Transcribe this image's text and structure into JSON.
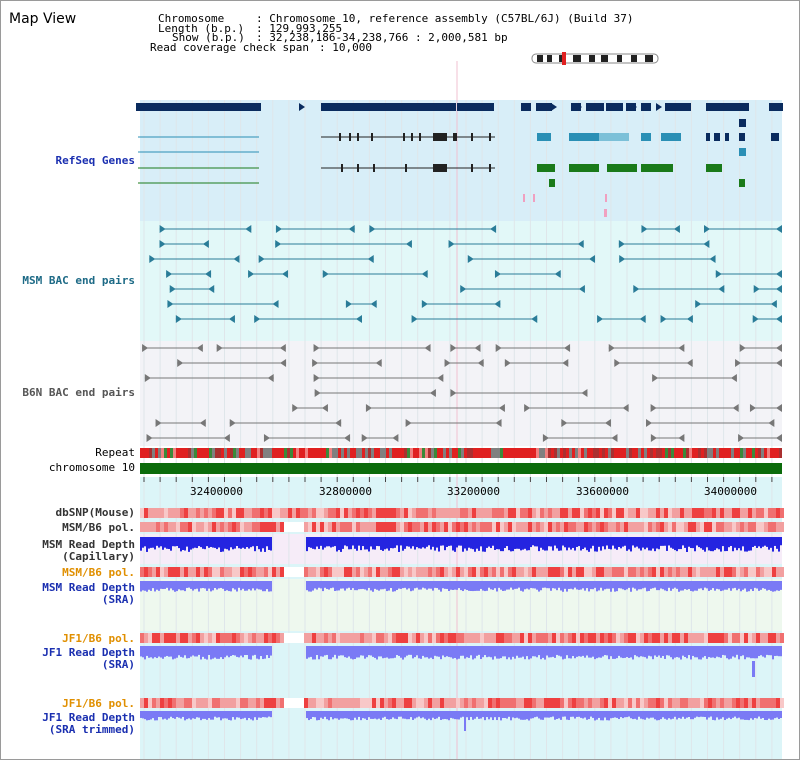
{
  "title": "Map View",
  "info": {
    "chromosome_label": "Chromosome",
    "chromosome_value": ": Chromosome 10, reference assembly (C57BL/6J) (Build 37)",
    "length_label": "Length (b.p.)",
    "length_value": ": 129,993,255",
    "show_label": "Show (b.p.)",
    "show_value": ": 32,238,186-34,238,766 : 2,000,581 bp",
    "span_label": "Read coverage check span",
    "span_value": ": 10,000"
  },
  "tracks": {
    "refseq": "RefSeq Genes",
    "msm_bac": "MSM BAC end pairs",
    "b6n_bac": "B6N BAC end pairs",
    "repeat": "Repeat",
    "chromosome": "chromosome 10",
    "dbsnp": "dbSNP(Mouse)",
    "msm_b6_pol": "MSM/B6 pol.",
    "msm_read_depth_cap_1": "MSM Read Depth",
    "msm_read_depth_cap_2": "(Capillary)",
    "msm_b6_pol_2": "MSM/B6 pol.",
    "msm_read_depth_sra_1": "MSM Read Depth",
    "msm_read_depth_sra_2": "(SRA)",
    "jf1_b6_pol": "JF1/B6 pol.",
    "jf1_read_depth_sra_1": "JF1 Read Depth",
    "jf1_read_depth_sra_2": "(SRA)",
    "jf1_b6_pol_2": "JF1/B6 pol.",
    "jf1_read_depth_trim_1": "JF1 Read Depth",
    "jf1_read_depth_trim_2": "(SRA trimmed)"
  },
  "axis": {
    "range_bp": [
      32238186,
      34238766
    ],
    "ticks": [
      "32400000",
      "32800000",
      "33200000",
      "33600000",
      "34000000"
    ]
  },
  "colors": {
    "refseq_bg": "#d8eef8",
    "msm_bg": "#e2f8f8",
    "b6n_bg": "#f3f3f7",
    "lower_bg": "#dcf5f8",
    "gene_dark": "#0a2b5e",
    "gene_teal": "#2a8fb5",
    "gene_green": "#1a7a1a",
    "bac_teal": "#2a7c98",
    "bac_gray": "#777777",
    "chromosome_bar": "#0b6b0b",
    "depth_blue": "#2424e0",
    "depth_light": "#7a7af5",
    "pol_red": "#e82020"
  }
}
